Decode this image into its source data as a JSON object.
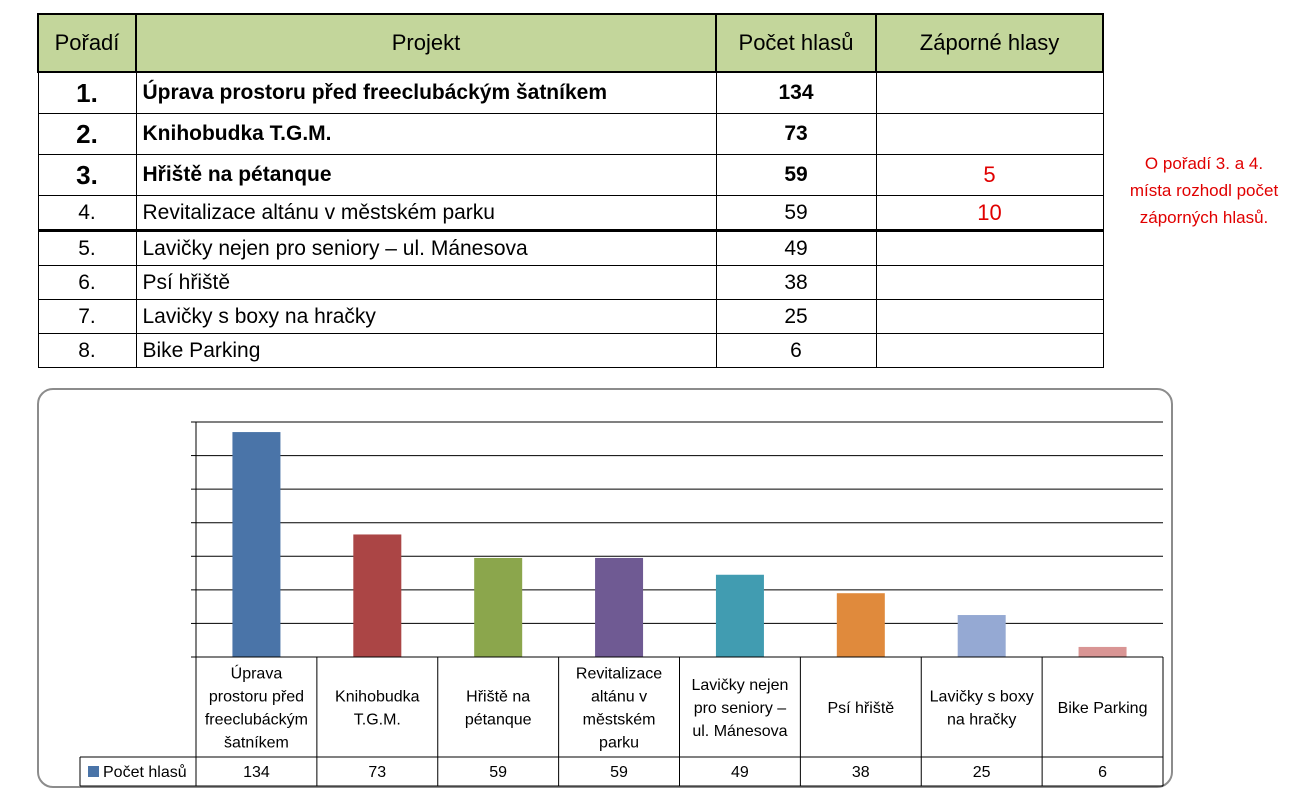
{
  "table": {
    "headers": [
      "Pořadí",
      "Projekt",
      "Počet hlasů",
      "Záporné hlasy"
    ],
    "rows": [
      {
        "rank": "1.",
        "project": "Úprava prostoru před freeclubáckým šatníkem",
        "votes": "134",
        "negative": ""
      },
      {
        "rank": "2.",
        "project": "Knihobudka T.G.M.",
        "votes": "73",
        "negative": ""
      },
      {
        "rank": "3.",
        "project": "Hřiště na pétanque",
        "votes": "59",
        "negative": "5"
      },
      {
        "rank": "4.",
        "project": "Revitalizace altánu v městském parku",
        "votes": "59",
        "negative": "10"
      },
      {
        "rank": "5.",
        "project": "Lavičky nejen pro seniory – ul. Mánesova",
        "votes": "49",
        "negative": ""
      },
      {
        "rank": "6.",
        "project": "Psí hřiště",
        "votes": "38",
        "negative": ""
      },
      {
        "rank": "7.",
        "project": "Lavičky s boxy na hračky",
        "votes": "25",
        "negative": ""
      },
      {
        "rank": "8.",
        "project": "Bike Parking",
        "votes": "6",
        "negative": ""
      }
    ]
  },
  "note": {
    "lines": [
      "O pořadí 3. a 4.",
      "místa rozhodl počet",
      "záporných hlasů."
    ]
  },
  "chart_data": {
    "type": "bar",
    "categories": [
      "Úprava prostoru před freeclubáckým šatníkem",
      "Knihobudka T.G.M.",
      "Hřiště na pétanque",
      "Revitalizace altánu v městském parku",
      "Lavičky nejen pro seniory – ul. Mánesova",
      "Psí hřiště",
      "Lavičky s boxy na hračky",
      "Bike Parking"
    ],
    "category_lines": [
      [
        "Úprava",
        "prostoru před",
        "freeclubáckým",
        "šatníkem"
      ],
      [
        "Knihobudka",
        "T.G.M."
      ],
      [
        "Hřiště na",
        "pétanque"
      ],
      [
        "Revitalizace",
        "altánu v",
        "městském",
        "parku"
      ],
      [
        "Lavičky nejen",
        "pro seniory –",
        "ul. Mánesova"
      ],
      [
        "Psí hřiště"
      ],
      [
        "Lavičky s boxy",
        "na hračky"
      ],
      [
        "Bike Parking"
      ]
    ],
    "series": [
      {
        "name": "Počet hlasů",
        "values": [
          134,
          73,
          59,
          59,
          49,
          38,
          25,
          6
        ]
      }
    ],
    "value_labels": [
      "134",
      "73",
      "59",
      "59",
      "49",
      "38",
      "25",
      "6"
    ],
    "bar_colors": [
      "#4a74a8",
      "#ab4545",
      "#8ba64c",
      "#6f5a93",
      "#419cb1",
      "#e08a3c",
      "#95a9d3",
      "#d99594"
    ],
    "legend_color": "#4a74a8",
    "ylim": [
      0,
      140
    ],
    "y_gridlines": [
      20,
      40,
      60,
      80,
      100,
      120,
      140
    ],
    "grid": true,
    "legend": "data-table"
  }
}
